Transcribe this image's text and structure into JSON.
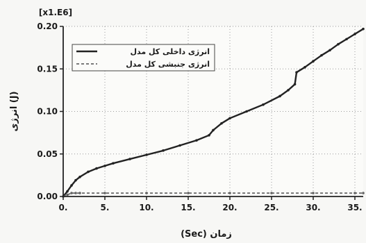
{
  "chart_data": {
    "type": "line",
    "multiplier": "[x1.E6]",
    "xlabel": "(Sec) زمان",
    "ylabel": "انرژی (J)",
    "xlim": [
      0,
      36
    ],
    "ylim": [
      0,
      0.2
    ],
    "xticks": [
      0,
      5,
      10,
      15,
      20,
      25,
      30,
      35
    ],
    "xtick_labels": [
      "0.",
      "5.",
      "10.",
      "15.",
      "20.",
      "25.",
      "30.",
      "35."
    ],
    "yticks": [
      0,
      0.05,
      0.1,
      0.15,
      0.2
    ],
    "ytick_labels": [
      "0.00",
      "0.05",
      "0.10",
      "0.15",
      "0.20"
    ],
    "grid": true,
    "legend_position": "top-left",
    "series": [
      {
        "name": "انرژی داخلی کل مدل",
        "color": "#222222",
        "style": "solid",
        "x": [
          0,
          0.5,
          1,
          1.5,
          2,
          3,
          4,
          5,
          6,
          8,
          10,
          12,
          14,
          16,
          17.5,
          18,
          19,
          20,
          22,
          24,
          26,
          27,
          27.8,
          28,
          29,
          30,
          31,
          32,
          33,
          34,
          35,
          36
        ],
        "y": [
          0,
          0.006,
          0.013,
          0.019,
          0.023,
          0.029,
          0.033,
          0.036,
          0.039,
          0.044,
          0.049,
          0.054,
          0.06,
          0.066,
          0.072,
          0.078,
          0.086,
          0.092,
          0.1,
          0.108,
          0.118,
          0.125,
          0.132,
          0.146,
          0.152,
          0.159,
          0.166,
          0.172,
          0.179,
          0.185,
          0.191,
          0.197
        ]
      },
      {
        "name": "انرژی جنبشی کل مدل",
        "color": "#666666",
        "style": "dashed",
        "x": [
          0,
          0.5,
          1,
          1.5,
          2,
          5,
          10,
          15,
          20,
          25,
          30,
          35,
          36
        ],
        "y": [
          0,
          0.002,
          0.004,
          0.004,
          0.004,
          0.004,
          0.004,
          0.004,
          0.004,
          0.004,
          0.004,
          0.004,
          0.004
        ]
      }
    ]
  }
}
